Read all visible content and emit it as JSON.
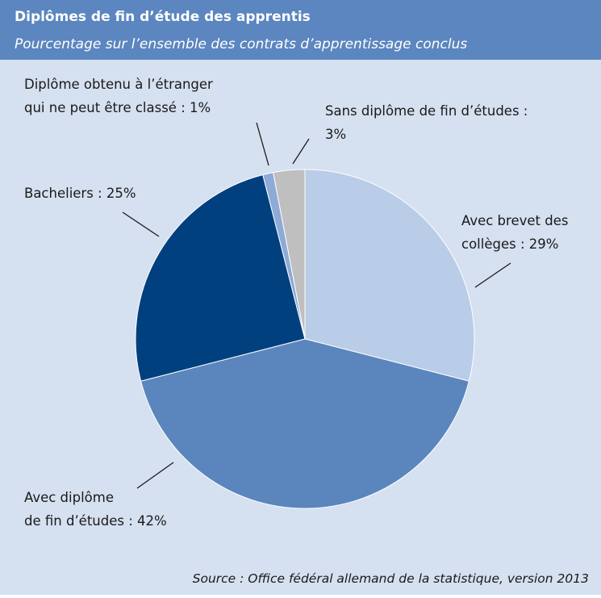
{
  "chart_data": {
    "type": "pie",
    "title": "Diplômes de fin d’étude des apprentis",
    "subtitle": "Pourcentage sur l’ensemble des contrats d’apprentissage conclus",
    "categories": [
      [
        "Avec brevet des",
        "collèges : 29%"
      ],
      [
        "Avec diplôme",
        "de fin d’études : 42%"
      ],
      [
        "Bacheliers : 25%"
      ],
      [
        "Diplôme obtenu à l’étranger",
        "qui ne peut être classé : 1%"
      ],
      [
        "Sans diplôme de fin d’études :",
        "3%"
      ]
    ],
    "values": [
      29,
      42,
      25,
      1,
      3
    ],
    "colors": [
      "#b9cce8",
      "#5a86bd",
      "#00407f",
      "#8eaad6",
      "#bfbfbf"
    ],
    "source": "Source : Office fédéral allemand de la statistique, version 2013"
  }
}
